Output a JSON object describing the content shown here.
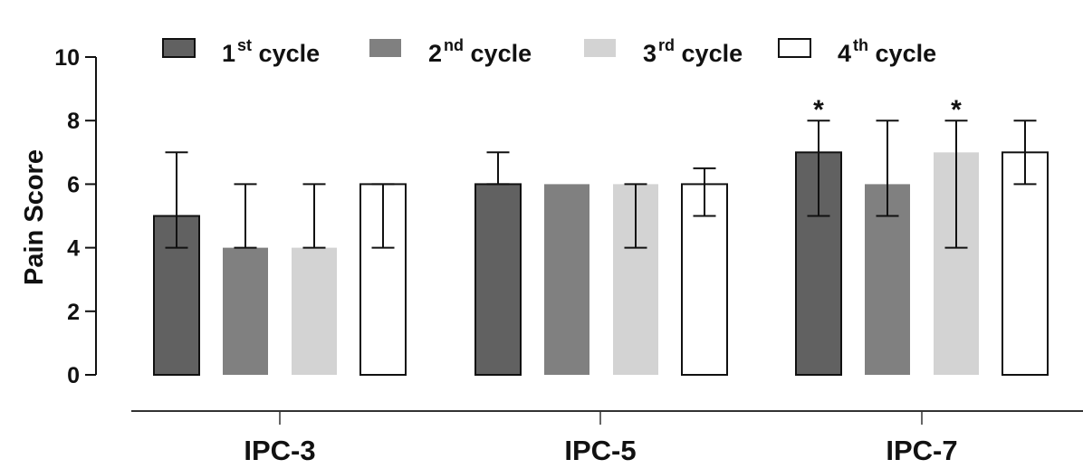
{
  "chart_data": {
    "type": "bar",
    "title": "",
    "xlabel": "",
    "ylabel": "Pain Score",
    "ylim": [
      0,
      10
    ],
    "yticks": [
      0,
      2,
      4,
      6,
      8,
      10
    ],
    "grid": false,
    "legend_position": "top",
    "categories": [
      "IPC-3",
      "IPC-5",
      "IPC-7"
    ],
    "series": [
      {
        "name": "1st cycle",
        "label_base": "1",
        "label_sup": "st",
        "label_rest": " cycle",
        "fill": "#616161",
        "stroke": "#111111",
        "values": [
          5,
          6,
          7
        ],
        "error_low": [
          4,
          6,
          5
        ],
        "error_high": [
          7,
          7,
          8
        ],
        "significance": [
          "",
          "",
          "*"
        ]
      },
      {
        "name": "2nd cycle",
        "label_base": "2",
        "label_sup": "nd",
        "label_rest": " cycle",
        "fill": "#808080",
        "stroke": "none",
        "values": [
          4,
          6,
          6
        ],
        "error_low": [
          4,
          6,
          5
        ],
        "error_high": [
          6,
          6,
          8
        ],
        "significance": [
          "",
          "",
          ""
        ]
      },
      {
        "name": "3rd cycle",
        "label_base": "3",
        "label_sup": "rd",
        "label_rest": " cycle",
        "fill": "#d3d3d3",
        "stroke": "none",
        "values": [
          4,
          6,
          7
        ],
        "error_low": [
          4,
          4,
          4
        ],
        "error_high": [
          6,
          6,
          8
        ],
        "significance": [
          "",
          "",
          "*"
        ]
      },
      {
        "name": "4th cycle",
        "label_base": "4",
        "label_sup": "th",
        "label_rest": " cycle",
        "fill": "#ffffff",
        "stroke": "#111111",
        "values": [
          6,
          6,
          7
        ],
        "error_low": [
          4,
          5,
          6
        ],
        "error_high": [
          6,
          6.5,
          8
        ],
        "significance": [
          "",
          "",
          ""
        ]
      }
    ]
  }
}
